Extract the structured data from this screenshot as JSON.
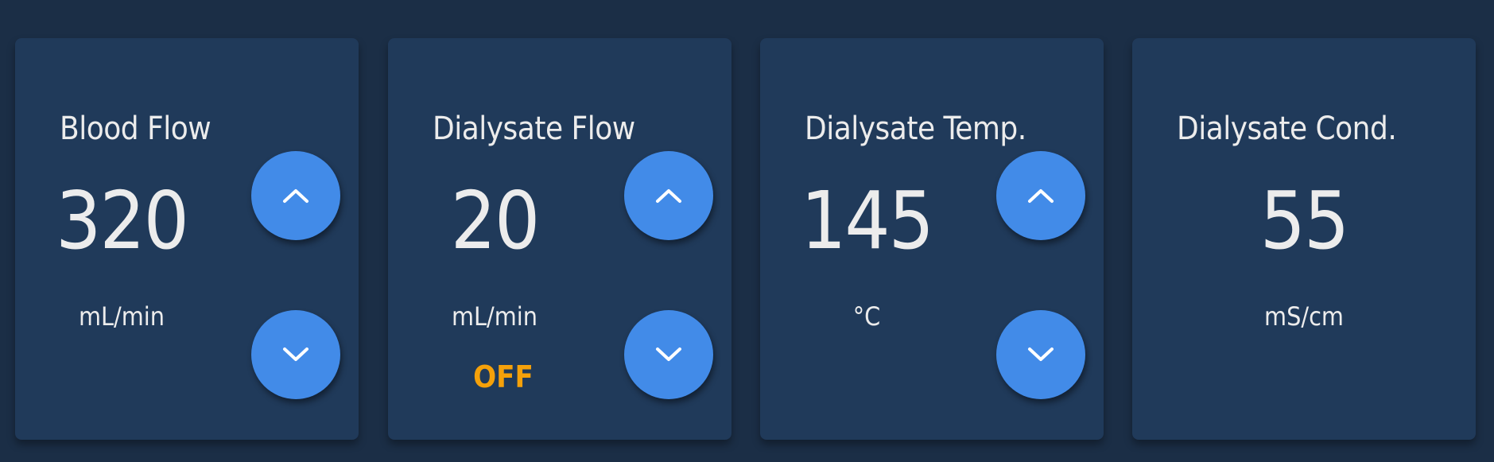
{
  "colors": {
    "background": "#1b2e46",
    "card": "#203a5a",
    "button": "#428be8",
    "status_off": "#f5a10a",
    "text": "#ececec"
  },
  "cards": [
    {
      "title": "Blood Flow",
      "value": "320",
      "unit": "mL/min",
      "status": "",
      "has_controls": true
    },
    {
      "title": "Dialysate Flow",
      "value": "20",
      "unit": "mL/min",
      "status": "OFF",
      "has_controls": true
    },
    {
      "title": "Dialysate Temp.",
      "value": "145",
      "unit": "°C",
      "status": "",
      "has_controls": true
    },
    {
      "title": "Dialysate Cond.",
      "value": "55",
      "unit": "mS/cm",
      "status": "",
      "has_controls": false
    }
  ],
  "icons": {
    "increase": "chevron-up-icon",
    "decrease": "chevron-down-icon"
  }
}
